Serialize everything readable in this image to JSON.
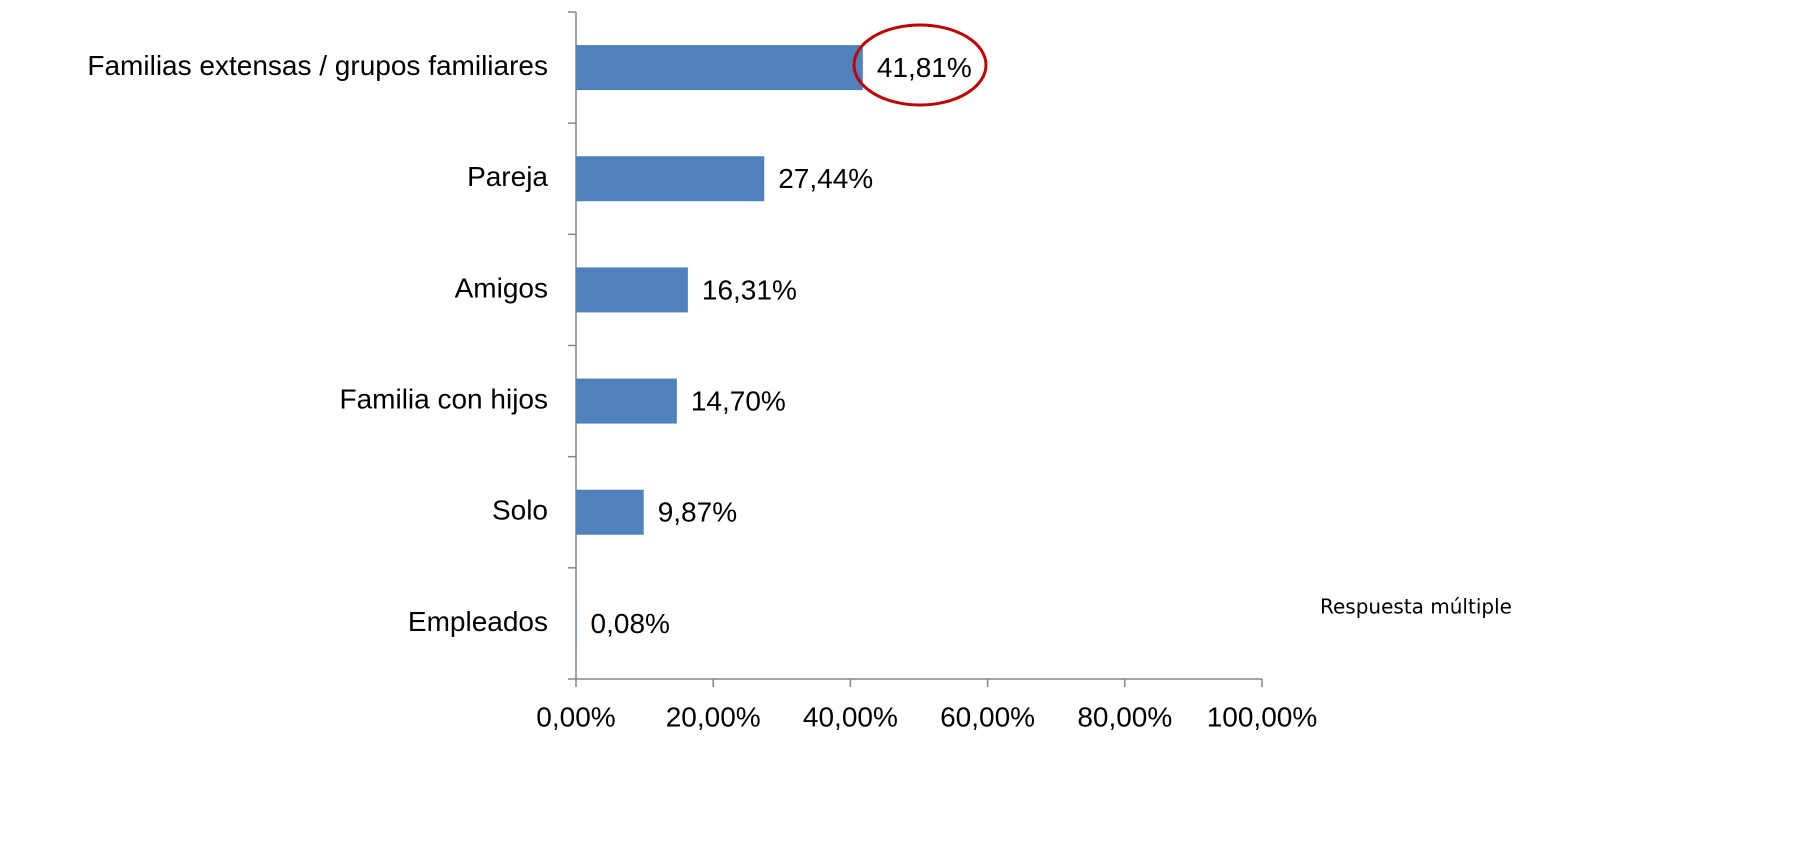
{
  "chart_data": {
    "type": "bar",
    "orientation": "horizontal",
    "categories": [
      "Familias extensas / grupos familiares",
      "Pareja",
      "Amigos",
      "Familia con hijos",
      "Solo",
      "Empleados"
    ],
    "values": [
      41.81,
      27.44,
      16.31,
      14.7,
      9.87,
      0.08
    ],
    "value_labels": [
      "41,81%",
      "27,44%",
      "16,31%",
      "14,70%",
      "9,87%",
      "0,08%"
    ],
    "color": "#4f81bd",
    "xlim": [
      0,
      100
    ],
    "xticks": [
      {
        "value": 0,
        "label": "0,00%"
      },
      {
        "value": 20,
        "label": "20,00%"
      },
      {
        "value": 40,
        "label": "40,00%"
      },
      {
        "value": 60,
        "label": "60,00%"
      },
      {
        "value": 80,
        "label": "80,00%"
      },
      {
        "value": 100,
        "label": "100,00%"
      }
    ],
    "grid": false,
    "note": "Respuesta múltiple"
  }
}
